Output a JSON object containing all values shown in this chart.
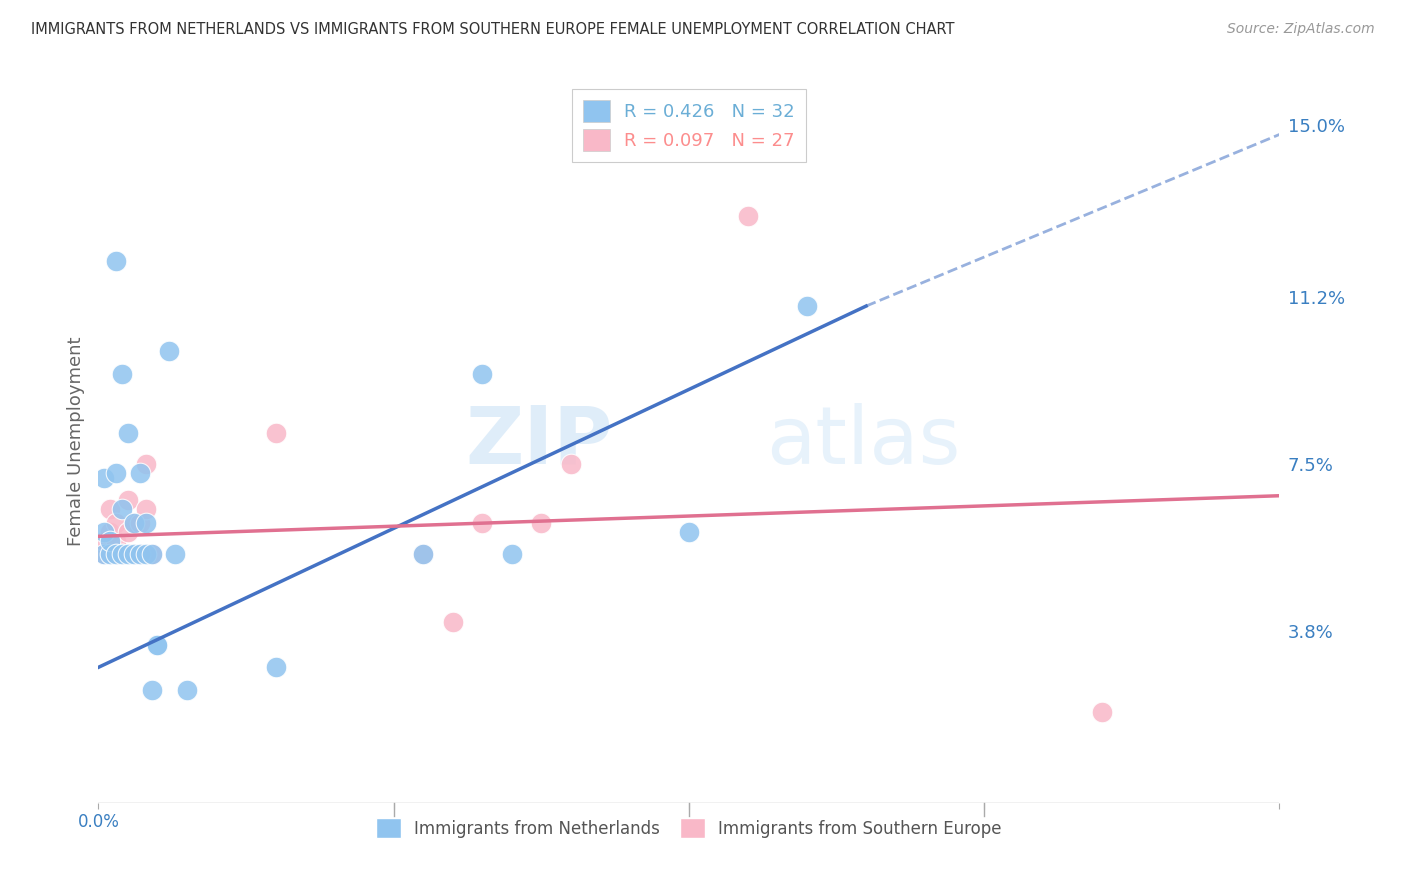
{
  "title": "IMMIGRANTS FROM NETHERLANDS VS IMMIGRANTS FROM SOUTHERN EUROPE FEMALE UNEMPLOYMENT CORRELATION CHART",
  "source": "Source: ZipAtlas.com",
  "ylabel": "Female Unemployment",
  "ytick_labels": [
    "15.0%",
    "11.2%",
    "7.5%",
    "3.8%"
  ],
  "ytick_values": [
    0.15,
    0.112,
    0.075,
    0.038
  ],
  "xlim": [
    0.0,
    0.2
  ],
  "ylim": [
    0.0,
    0.16
  ],
  "legend": {
    "series1_label": "R = 0.426   N = 32",
    "series2_label": "R = 0.097   N = 27",
    "series1_color": "#6baed6",
    "series2_color": "#fc8d8d"
  },
  "watermark": "ZIPatlas",
  "netherlands_x": [
    0.001,
    0.001,
    0.001,
    0.002,
    0.002,
    0.003,
    0.003,
    0.003,
    0.004,
    0.004,
    0.004,
    0.005,
    0.005,
    0.006,
    0.006,
    0.007,
    0.007,
    0.008,
    0.008,
    0.009,
    0.009,
    0.01,
    0.01,
    0.012,
    0.013,
    0.015,
    0.03,
    0.055,
    0.065,
    0.07,
    0.1,
    0.12
  ],
  "netherlands_y": [
    0.055,
    0.06,
    0.072,
    0.055,
    0.058,
    0.055,
    0.073,
    0.12,
    0.055,
    0.065,
    0.095,
    0.055,
    0.082,
    0.055,
    0.062,
    0.055,
    0.073,
    0.055,
    0.062,
    0.025,
    0.055,
    0.035,
    0.035,
    0.1,
    0.055,
    0.025,
    0.03,
    0.055,
    0.095,
    0.055,
    0.06,
    0.11
  ],
  "southern_europe_x": [
    0.001,
    0.001,
    0.002,
    0.002,
    0.002,
    0.003,
    0.003,
    0.003,
    0.003,
    0.004,
    0.005,
    0.005,
    0.006,
    0.006,
    0.007,
    0.007,
    0.008,
    0.008,
    0.009,
    0.03,
    0.055,
    0.06,
    0.065,
    0.075,
    0.08,
    0.11,
    0.17
  ],
  "southern_europe_y": [
    0.055,
    0.058,
    0.055,
    0.06,
    0.065,
    0.055,
    0.055,
    0.058,
    0.062,
    0.055,
    0.06,
    0.067,
    0.055,
    0.062,
    0.055,
    0.062,
    0.065,
    0.075,
    0.055,
    0.082,
    0.055,
    0.04,
    0.062,
    0.062,
    0.075,
    0.13,
    0.02
  ],
  "netherlands_color": "#90c4ef",
  "southern_europe_color": "#f9b8c8",
  "trendline_netherlands_color": "#4472c4",
  "trendline_southern_europe_color": "#e07090",
  "background_color": "#ffffff",
  "grid_color": "#d8d8d8",
  "trendline_nl_x0": 0.0,
  "trendline_nl_y0": 0.03,
  "trendline_nl_x1": 0.13,
  "trendline_nl_y1": 0.11,
  "trendline_nl_dash_x0": 0.13,
  "trendline_nl_dash_y0": 0.11,
  "trendline_nl_dash_x1": 0.2,
  "trendline_nl_dash_y1": 0.148,
  "trendline_se_x0": 0.0,
  "trendline_se_y0": 0.059,
  "trendline_se_x1": 0.2,
  "trendline_se_y1": 0.068
}
